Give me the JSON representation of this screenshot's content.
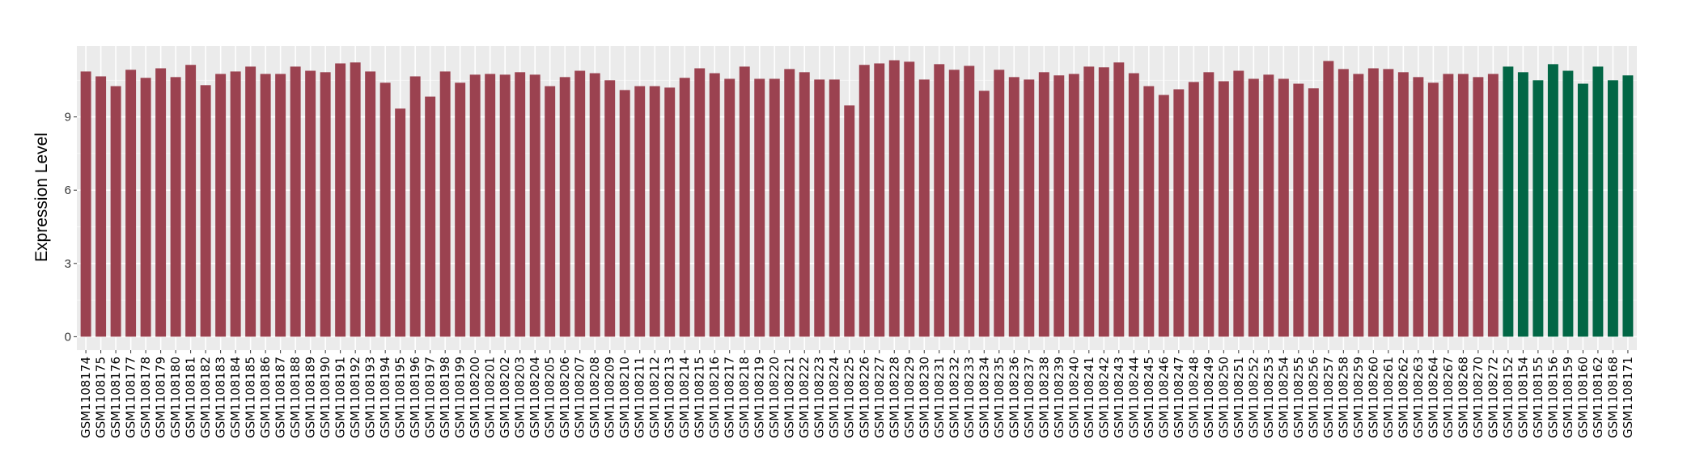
{
  "chart_data": {
    "type": "bar",
    "title": "",
    "xlabel": "",
    "ylabel": "Expression Level",
    "ylim": [
      -0.55,
      11.9
    ],
    "yticks": [
      0,
      3,
      6,
      9
    ],
    "grid": true,
    "legend": "none",
    "colors": {
      "group1": "#9B4250",
      "group2": "#026645",
      "panel": "#EBEBEB",
      "grid": "#FFFFFF"
    },
    "categories": [
      "GSM1108174",
      "GSM1108175",
      "GSM1108176",
      "GSM1108177",
      "GSM1108178",
      "GSM1108179",
      "GSM1108180",
      "GSM1108181",
      "GSM1108182",
      "GSM1108183",
      "GSM1108184",
      "GSM1108185",
      "GSM1108186",
      "GSM1108187",
      "GSM1108188",
      "GSM1108189",
      "GSM1108190",
      "GSM1108191",
      "GSM1108192",
      "GSM1108193",
      "GSM1108194",
      "GSM1108195",
      "GSM1108196",
      "GSM1108197",
      "GSM1108198",
      "GSM1108199",
      "GSM1108200",
      "GSM1108201",
      "GSM1108202",
      "GSM1108203",
      "GSM1108204",
      "GSM1108205",
      "GSM1108206",
      "GSM1108207",
      "GSM1108208",
      "GSM1108209",
      "GSM1108210",
      "GSM1108211",
      "GSM1108212",
      "GSM1108213",
      "GSM1108214",
      "GSM1108215",
      "GSM1108216",
      "GSM1108217",
      "GSM1108218",
      "GSM1108219",
      "GSM1108220",
      "GSM1108221",
      "GSM1108222",
      "GSM1108223",
      "GSM1108224",
      "GSM1108225",
      "GSM1108226",
      "GSM1108227",
      "GSM1108228",
      "GSM1108229",
      "GSM1108230",
      "GSM1108231",
      "GSM1108232",
      "GSM1108233",
      "GSM1108234",
      "GSM1108235",
      "GSM1108236",
      "GSM1108237",
      "GSM1108238",
      "GSM1108239",
      "GSM1108240",
      "GSM1108241",
      "GSM1108242",
      "GSM1108243",
      "GSM1108244",
      "GSM1108245",
      "GSM1108246",
      "GSM1108247",
      "GSM1108248",
      "GSM1108249",
      "GSM1108250",
      "GSM1108251",
      "GSM1108252",
      "GSM1108253",
      "GSM1108254",
      "GSM1108255",
      "GSM1108256",
      "GSM1108257",
      "GSM1108258",
      "GSM1108259",
      "GSM1108260",
      "GSM1108261",
      "GSM1108262",
      "GSM1108263",
      "GSM1108264",
      "GSM1108267",
      "GSM1108268",
      "GSM1108270",
      "GSM1108272",
      "GSM1108152",
      "GSM1108154",
      "GSM1108155",
      "GSM1108156",
      "GSM1108159",
      "GSM1108160",
      "GSM1108162",
      "GSM1108168",
      "GSM1108171"
    ],
    "values": [
      10.86,
      10.66,
      10.26,
      10.93,
      10.6,
      10.99,
      10.63,
      11.13,
      10.3,
      10.76,
      10.86,
      11.06,
      10.76,
      10.76,
      11.06,
      10.89,
      10.83,
      11.19,
      11.23,
      10.86,
      10.4,
      9.34,
      10.66,
      9.83,
      10.86,
      10.4,
      10.73,
      10.76,
      10.73,
      10.83,
      10.73,
      10.26,
      10.63,
      10.89,
      10.79,
      10.5,
      10.1,
      10.26,
      10.26,
      10.2,
      10.6,
      10.99,
      10.79,
      10.56,
      11.06,
      10.56,
      10.56,
      10.96,
      10.83,
      10.53,
      10.53,
      9.47,
      11.13,
      11.19,
      11.32,
      11.26,
      10.53,
      11.16,
      10.93,
      11.09,
      10.07,
      10.93,
      10.63,
      10.53,
      10.83,
      10.7,
      10.76,
      11.06,
      11.03,
      11.23,
      10.79,
      10.26,
      9.9,
      10.13,
      10.43,
      10.83,
      10.46,
      10.89,
      10.56,
      10.73,
      10.56,
      10.36,
      10.17,
      11.29,
      10.96,
      10.76,
      10.99,
      10.96,
      10.83,
      10.63,
      10.4,
      10.76,
      10.76,
      10.63,
      10.76,
      11.06,
      10.83,
      10.5,
      11.16,
      10.89,
      10.36,
      11.06,
      10.5,
      10.7
    ],
    "groups": [
      "group1",
      "group1",
      "group1",
      "group1",
      "group1",
      "group1",
      "group1",
      "group1",
      "group1",
      "group1",
      "group1",
      "group1",
      "group1",
      "group1",
      "group1",
      "group1",
      "group1",
      "group1",
      "group1",
      "group1",
      "group1",
      "group1",
      "group1",
      "group1",
      "group1",
      "group1",
      "group1",
      "group1",
      "group1",
      "group1",
      "group1",
      "group1",
      "group1",
      "group1",
      "group1",
      "group1",
      "group1",
      "group1",
      "group1",
      "group1",
      "group1",
      "group1",
      "group1",
      "group1",
      "group1",
      "group1",
      "group1",
      "group1",
      "group1",
      "group1",
      "group1",
      "group1",
      "group1",
      "group1",
      "group1",
      "group1",
      "group1",
      "group1",
      "group1",
      "group1",
      "group1",
      "group1",
      "group1",
      "group1",
      "group1",
      "group1",
      "group1",
      "group1",
      "group1",
      "group1",
      "group1",
      "group1",
      "group1",
      "group1",
      "group1",
      "group1",
      "group1",
      "group1",
      "group1",
      "group1",
      "group1",
      "group1",
      "group1",
      "group1",
      "group1",
      "group1",
      "group1",
      "group1",
      "group1",
      "group1",
      "group1",
      "group1",
      "group1",
      "group1",
      "group1",
      "group2",
      "group2",
      "group2",
      "group2",
      "group2",
      "group2",
      "group2",
      "group2",
      "group2"
    ]
  }
}
